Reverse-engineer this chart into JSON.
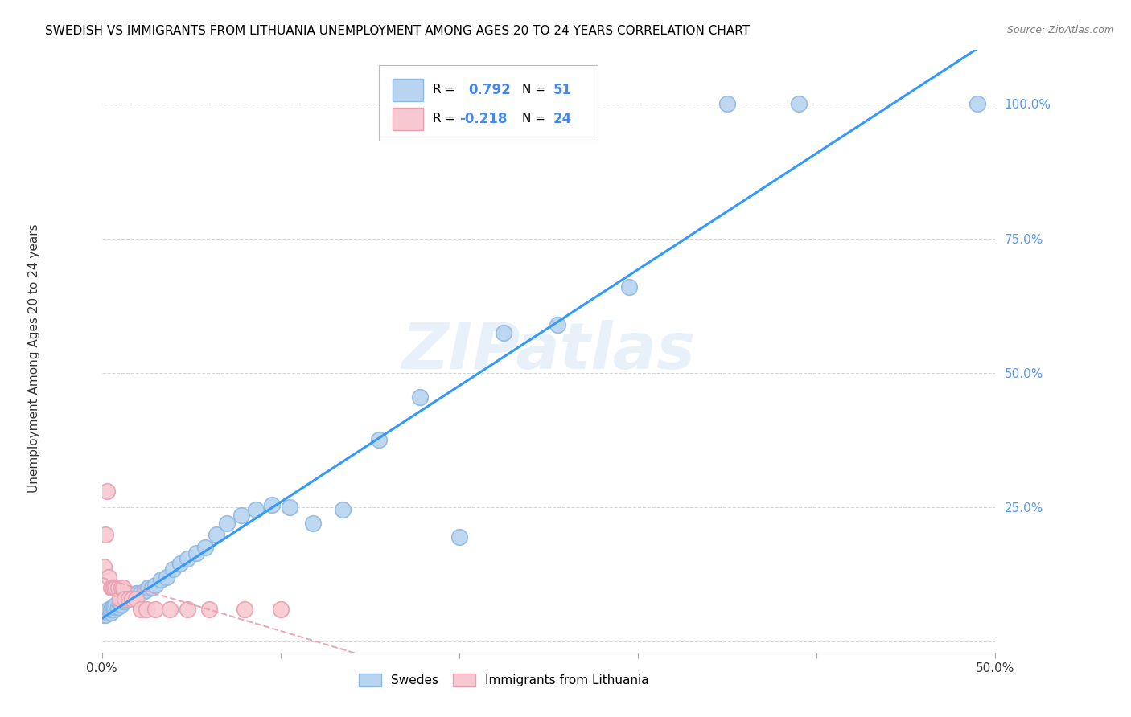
{
  "title": "SWEDISH VS IMMIGRANTS FROM LITHUANIA UNEMPLOYMENT AMONG AGES 20 TO 24 YEARS CORRELATION CHART",
  "source": "Source: ZipAtlas.com",
  "ylabel": "Unemployment Among Ages 20 to 24 years",
  "xlim": [
    0.0,
    0.5
  ],
  "ylim": [
    -0.02,
    1.1
  ],
  "xticks": [
    0.0,
    0.1,
    0.2,
    0.3,
    0.4,
    0.5
  ],
  "yticks": [
    0.0,
    0.25,
    0.5,
    0.75,
    1.0
  ],
  "swedes_R": 0.792,
  "swedes_N": 51,
  "lithuania_R": -0.218,
  "lithuania_N": 24,
  "swedes_color": "#b8d4f0",
  "swedes_edge": "#90b8e0",
  "lithuania_color": "#f8c8d0",
  "lithuania_edge": "#e8a0b0",
  "trend_blue_color": "#3399ff",
  "trend_pink_color": "#e8a0b0",
  "swedes_x": [
    0.001,
    0.002,
    0.003,
    0.004,
    0.005,
    0.005,
    0.006,
    0.007,
    0.007,
    0.008,
    0.009,
    0.01,
    0.011,
    0.012,
    0.013,
    0.014,
    0.015,
    0.016,
    0.017,
    0.018,
    0.019,
    0.02,
    0.022,
    0.024,
    0.026,
    0.028,
    0.03,
    0.033,
    0.036,
    0.04,
    0.044,
    0.048,
    0.053,
    0.058,
    0.064,
    0.07,
    0.078,
    0.086,
    0.095,
    0.105,
    0.118,
    0.135,
    0.155,
    0.178,
    0.2,
    0.225,
    0.255,
    0.295,
    0.35,
    0.39,
    0.49
  ],
  "swedes_y": [
    0.05,
    0.05,
    0.055,
    0.06,
    0.055,
    0.06,
    0.065,
    0.06,
    0.065,
    0.07,
    0.065,
    0.07,
    0.07,
    0.075,
    0.075,
    0.08,
    0.08,
    0.08,
    0.085,
    0.085,
    0.09,
    0.09,
    0.09,
    0.095,
    0.1,
    0.1,
    0.105,
    0.115,
    0.12,
    0.135,
    0.145,
    0.155,
    0.165,
    0.175,
    0.2,
    0.22,
    0.235,
    0.245,
    0.255,
    0.25,
    0.22,
    0.245,
    0.375,
    0.455,
    0.195,
    0.575,
    0.59,
    0.66,
    1.0,
    1.0,
    1.0
  ],
  "lithuania_x": [
    0.001,
    0.002,
    0.003,
    0.004,
    0.005,
    0.006,
    0.007,
    0.008,
    0.009,
    0.01,
    0.011,
    0.012,
    0.013,
    0.015,
    0.017,
    0.019,
    0.022,
    0.025,
    0.03,
    0.038,
    0.048,
    0.06,
    0.08,
    0.1
  ],
  "lithuania_y": [
    0.14,
    0.2,
    0.28,
    0.12,
    0.1,
    0.1,
    0.1,
    0.1,
    0.1,
    0.08,
    0.1,
    0.1,
    0.08,
    0.08,
    0.08,
    0.08,
    0.06,
    0.06,
    0.06,
    0.06,
    0.06,
    0.06,
    0.06,
    0.06
  ]
}
